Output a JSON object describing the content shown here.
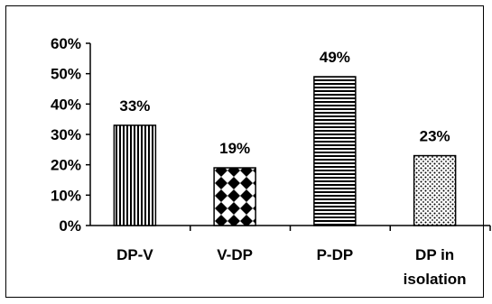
{
  "chart_data": {
    "type": "bar",
    "categories": [
      [
        "DP-V"
      ],
      [
        "V-DP"
      ],
      [
        "P-DP"
      ],
      [
        "DP in",
        "isolation"
      ]
    ],
    "values": [
      33,
      19,
      49,
      23
    ],
    "data_labels": [
      "33%",
      "19%",
      "49%",
      "23%"
    ],
    "patterns": [
      "vertical-stripes",
      "checker-diamonds",
      "horizontal-stripes",
      "dots"
    ],
    "yticks": [
      "0%",
      "10%",
      "20%",
      "30%",
      "40%",
      "50%",
      "60%"
    ],
    "ylim": [
      0,
      60
    ],
    "grid": false,
    "legend": "none",
    "colors": {
      "bar_stroke": "#000000",
      "pattern_fg": "#000000",
      "pattern_bg": "#ffffff"
    }
  }
}
